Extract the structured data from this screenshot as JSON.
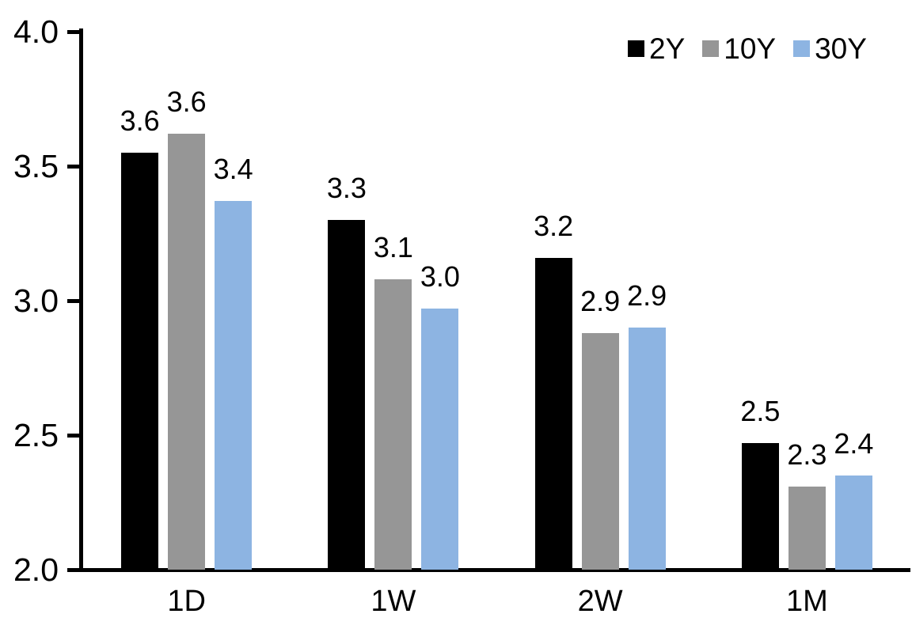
{
  "chart_data": {
    "type": "bar",
    "categories": [
      "1D",
      "1W",
      "2W",
      "1M"
    ],
    "series": [
      {
        "name": "2Y",
        "color": "#000000",
        "values": [
          3.55,
          3.3,
          3.16,
          2.47
        ],
        "labels": [
          "3.6",
          "3.3",
          "3.2",
          "2.5"
        ]
      },
      {
        "name": "10Y",
        "color": "#969696",
        "values": [
          3.62,
          3.08,
          2.88,
          2.31
        ],
        "labels": [
          "3.6",
          "3.1",
          "2.9",
          "2.3"
        ]
      },
      {
        "name": "30Y",
        "color": "#8DB4E2",
        "values": [
          3.37,
          2.97,
          2.9,
          2.35
        ],
        "labels": [
          "3.4",
          "3.0",
          "2.9",
          "2.4"
        ]
      }
    ],
    "y_axis": {
      "min": 2.0,
      "max": 4.0,
      "step": 0.5,
      "tick_labels": [
        "4.0",
        "3.5",
        "3.0",
        "2.5",
        "2.0"
      ]
    },
    "xlabel": "",
    "ylabel": "",
    "grid": false,
    "legend_position": "top-right",
    "axis_color": "#000000",
    "data_label_color": "#000000"
  }
}
